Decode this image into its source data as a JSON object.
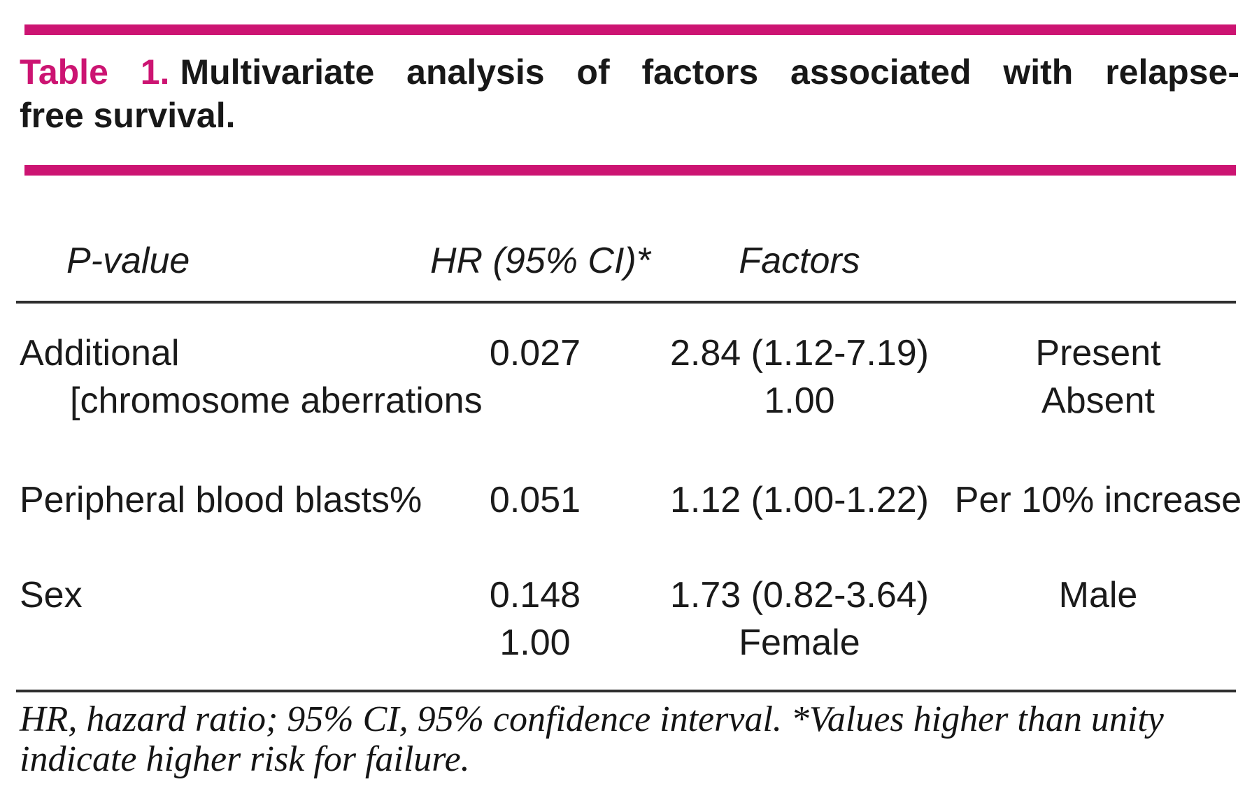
{
  "page": {
    "accent_color": "#cc1472",
    "text_color": "#1a1a1a",
    "rule_color": "#2e2e2e",
    "background": "#ffffff"
  },
  "caption": {
    "table_label": "Table 1.",
    "title_line1_rest": "Multivariate analysis of factors associated with relapse-",
    "title_line2": "free survival."
  },
  "table": {
    "column_headers": {
      "p": "P-value",
      "hr": "HR (95% CI)*",
      "factors": "Factors"
    },
    "rows": [
      {
        "lines": [
          {
            "label": "Additional",
            "p": "0.027",
            "hr": "2.84 (1.12-7.19)",
            "factor": "Present"
          },
          {
            "label": "[chromosome aberrations",
            "p": "",
            "hr": "1.00",
            "factor": "Absent"
          }
        ]
      },
      {
        "lines": [
          {
            "label": "Peripheral blood blasts%",
            "p": "0.051",
            "hr": "1.12 (1.00-1.22)",
            "factor": "Per 10% increase"
          }
        ]
      },
      {
        "lines": [
          {
            "label": "Sex",
            "p": "0.148",
            "hr": "1.73 (0.82-3.64)",
            "factor": "Male"
          },
          {
            "label": "",
            "p": "1.00",
            "hr": "Female",
            "factor": ""
          }
        ]
      }
    ]
  },
  "footnote": {
    "line1": "HR, hazard ratio; 95% CI, 95% confidence interval. *Values higher than unity",
    "line2": "indicate higher risk for failure."
  }
}
